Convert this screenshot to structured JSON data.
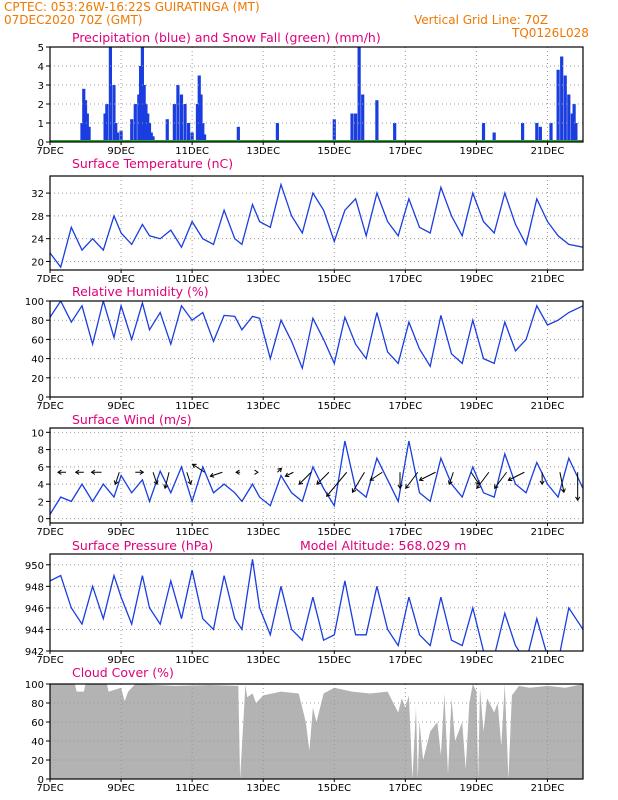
{
  "header": {
    "location_line": "CPTEC:   053:26W-16:22S   GUIRATINGA (MT)",
    "date_line": "07DEC2020 70Z (GMT)",
    "grid_note": "Vertical Grid Line: 70Z",
    "run_id": "TQ0126L028"
  },
  "colors": {
    "header": "#f07800",
    "title": "#e0007a",
    "precip": "#1a3de0",
    "snow": "#2ca02c",
    "line": "#1a3de0",
    "arrow": "#000000",
    "cloud": "#b3b3b3",
    "grid": "#999999"
  },
  "x_axis": {
    "tick_labels": [
      "7DEC",
      "9DEC",
      "11DEC",
      "13DEC",
      "15DEC",
      "17DEC",
      "19DEC",
      "21DEC"
    ],
    "range_days": [
      7,
      22
    ]
  },
  "chart_data": [
    {
      "type": "bar",
      "title": "Precipitation (blue) and Snow Fall (green) (mm/h)",
      "ylim": [
        0,
        5
      ],
      "yticks": [
        0,
        1,
        2,
        3,
        4,
        5
      ],
      "series": [
        {
          "name": "Precipitation",
          "day": [
            7.9,
            7.95,
            8.0,
            8.05,
            8.1,
            8.55,
            8.6,
            8.7,
            8.8,
            8.85,
            8.9,
            9.0,
            9.3,
            9.4,
            9.5,
            9.55,
            9.6,
            9.65,
            9.7,
            9.75,
            9.8,
            9.85,
            9.9,
            10.3,
            10.5,
            10.6,
            10.7,
            10.8,
            10.9,
            11.0,
            11.15,
            11.2,
            11.25,
            11.3,
            11.35,
            12.3,
            13.4,
            15.0,
            15.5,
            15.6,
            15.7,
            15.8,
            16.2,
            16.7,
            19.2,
            19.5,
            20.3,
            20.7,
            20.8,
            21.1,
            21.3,
            21.4,
            21.5,
            21.6,
            21.7,
            21.75,
            21.8
          ],
          "values": [
            1.0,
            2.8,
            2.2,
            1.5,
            0.8,
            1.5,
            2.0,
            5.0,
            3.0,
            1.0,
            0.5,
            0.6,
            1.2,
            2.0,
            2.5,
            4.0,
            5.0,
            3.0,
            2.0,
            1.5,
            1.0,
            0.5,
            0.3,
            1.2,
            2.0,
            3.0,
            2.5,
            2.0,
            1.0,
            0.5,
            2.0,
            3.5,
            2.5,
            1.0,
            0.4,
            0.8,
            1.0,
            1.2,
            1.5,
            1.5,
            5.0,
            2.5,
            2.2,
            1.0,
            1.0,
            0.5,
            1.0,
            1.0,
            0.8,
            1.0,
            3.8,
            4.5,
            3.5,
            2.5,
            1.5,
            2.0,
            1.0
          ]
        },
        {
          "name": "Snow Fall",
          "values": [
            0
          ]
        }
      ]
    },
    {
      "type": "line",
      "title": "Surface Temperature (nC)",
      "ylim": [
        18.5,
        35
      ],
      "yticks": [
        20,
        24,
        28,
        32
      ],
      "x": [
        7.0,
        7.3,
        7.6,
        7.9,
        8.2,
        8.5,
        8.8,
        9.0,
        9.3,
        9.6,
        9.8,
        10.1,
        10.4,
        10.7,
        11.0,
        11.3,
        11.6,
        11.9,
        12.2,
        12.4,
        12.7,
        12.9,
        13.2,
        13.5,
        13.8,
        14.1,
        14.4,
        14.7,
        15.0,
        15.3,
        15.6,
        15.9,
        16.2,
        16.5,
        16.8,
        17.1,
        17.4,
        17.7,
        18.0,
        18.3,
        18.6,
        18.9,
        19.2,
        19.5,
        19.8,
        20.1,
        20.4,
        20.7,
        21.0,
        21.3,
        21.6,
        22.0
      ],
      "values": [
        21.5,
        19.0,
        26.0,
        22.0,
        24.0,
        22.0,
        28.0,
        25.0,
        23.0,
        26.5,
        24.5,
        24.0,
        25.5,
        22.5,
        27.0,
        24.0,
        23.0,
        29.0,
        24.0,
        23.0,
        30.0,
        27.0,
        26.0,
        33.5,
        28.0,
        25.0,
        32.0,
        29.0,
        23.5,
        29.0,
        31.0,
        24.5,
        32.0,
        27.0,
        24.5,
        31.0,
        26.0,
        25.0,
        33.0,
        28.0,
        24.5,
        32.0,
        27.0,
        25.0,
        32.0,
        26.5,
        23.0,
        31.0,
        27.0,
        24.5,
        23.0,
        22.5
      ]
    },
    {
      "type": "line",
      "title": "Relative Humidity (%)",
      "ylim": [
        0,
        100
      ],
      "yticks": [
        0,
        20,
        40,
        60,
        80,
        100
      ],
      "x": [
        7.0,
        7.3,
        7.6,
        7.9,
        8.2,
        8.5,
        8.8,
        9.0,
        9.3,
        9.6,
        9.8,
        10.1,
        10.4,
        10.7,
        11.0,
        11.3,
        11.6,
        11.9,
        12.2,
        12.4,
        12.7,
        12.9,
        13.2,
        13.5,
        13.8,
        14.1,
        14.4,
        14.7,
        15.0,
        15.3,
        15.6,
        15.9,
        16.2,
        16.5,
        16.8,
        17.1,
        17.4,
        17.7,
        18.0,
        18.3,
        18.6,
        18.9,
        19.2,
        19.5,
        19.8,
        20.1,
        20.4,
        20.7,
        21.0,
        21.3,
        21.6,
        22.0
      ],
      "values": [
        83,
        100,
        78,
        95,
        55,
        100,
        62,
        95,
        60,
        98,
        70,
        88,
        55,
        95,
        80,
        88,
        58,
        85,
        84,
        70,
        84,
        82,
        40,
        80,
        58,
        30,
        82,
        60,
        35,
        83,
        55,
        40,
        88,
        47,
        35,
        78,
        50,
        32,
        85,
        45,
        35,
        80,
        40,
        35,
        78,
        48,
        60,
        95,
        75,
        80,
        88,
        95
      ]
    },
    {
      "type": "line",
      "title": "Surface Wind (m/s)",
      "ylim": [
        -0.5,
        10.5
      ],
      "yticks": [
        0,
        2,
        4,
        6,
        8,
        10
      ],
      "x": [
        7.0,
        7.3,
        7.6,
        7.9,
        8.2,
        8.5,
        8.8,
        9.0,
        9.3,
        9.6,
        9.8,
        10.1,
        10.4,
        10.7,
        11.0,
        11.3,
        11.6,
        11.9,
        12.2,
        12.4,
        12.7,
        12.9,
        13.2,
        13.5,
        13.8,
        14.1,
        14.4,
        14.7,
        15.0,
        15.3,
        15.6,
        15.9,
        16.2,
        16.5,
        16.8,
        17.1,
        17.4,
        17.7,
        18.0,
        18.3,
        18.6,
        18.9,
        19.2,
        19.5,
        19.8,
        20.1,
        20.4,
        20.7,
        21.0,
        21.3,
        21.6,
        22.0
      ],
      "values": [
        0.5,
        2.5,
        2.0,
        4.0,
        2.0,
        4.0,
        2.5,
        5.0,
        3.0,
        4.5,
        2.0,
        5.5,
        3.0,
        6.0,
        2.0,
        6.0,
        3.0,
        4.0,
        3.0,
        2.0,
        4.0,
        2.5,
        1.5,
        5.0,
        3.0,
        2.0,
        6.0,
        3.5,
        1.5,
        9.0,
        3.5,
        2.5,
        7.0,
        4.5,
        2.0,
        9.0,
        3.0,
        2.0,
        7.0,
        4.0,
        2.5,
        6.0,
        3.0,
        2.5,
        7.5,
        4.0,
        3.0,
        6.5,
        4.0,
        2.5,
        7.0,
        3.5
      ],
      "arrow_days": [
        7.45,
        7.95,
        8.45,
        8.95,
        9.4,
        9.9,
        10.35,
        10.85,
        11.35,
        11.85,
        12.35,
        12.85,
        13.4,
        13.85,
        14.35,
        14.85,
        15.35,
        15.85,
        16.35,
        16.85,
        17.35,
        17.85,
        18.35,
        18.85,
        19.35,
        19.85,
        20.35,
        20.85,
        21.35,
        21.85
      ],
      "arrow_u": [
        -2,
        -2,
        -2.5,
        -1,
        2,
        1,
        -1,
        1,
        -3,
        -3,
        -1,
        0,
        1,
        -2,
        -3,
        -3,
        -5,
        -3,
        -3,
        0,
        -3,
        -4,
        -1,
        2,
        -3,
        -3,
        -4,
        0,
        1,
        0
      ],
      "arrow_v": [
        0,
        0,
        0,
        -3,
        0,
        -3,
        -4,
        -3,
        2,
        -1,
        0,
        0,
        1,
        -1,
        -3,
        -3,
        -6,
        -5,
        -2,
        -4,
        -4,
        -2,
        -3,
        -3,
        -4,
        -4,
        -2,
        -3,
        -5,
        -7
      ]
    },
    {
      "type": "line",
      "title": "Surface Pressure (hPa)",
      "subtitle": "Model Altitude: 568.029 m",
      "ylim": [
        942,
        951
      ],
      "yticks": [
        942,
        944,
        946,
        948,
        950
      ],
      "x": [
        7.0,
        7.3,
        7.6,
        7.9,
        8.2,
        8.5,
        8.8,
        9.0,
        9.3,
        9.6,
        9.8,
        10.1,
        10.4,
        10.7,
        11.0,
        11.3,
        11.6,
        11.9,
        12.2,
        12.4,
        12.7,
        12.9,
        13.2,
        13.5,
        13.8,
        14.1,
        14.4,
        14.7,
        15.0,
        15.3,
        15.6,
        15.9,
        16.2,
        16.5,
        16.8,
        17.1,
        17.4,
        17.7,
        18.0,
        18.3,
        18.6,
        18.9,
        19.2,
        19.5,
        19.8,
        20.1,
        20.4,
        20.7,
        21.0,
        21.3,
        21.6,
        22.0
      ],
      "values": [
        948.5,
        949.0,
        946.0,
        944.5,
        948.0,
        945.0,
        949.0,
        947.0,
        944.5,
        949.0,
        946.0,
        944.5,
        948.5,
        945.0,
        949.5,
        945.0,
        944.0,
        949.0,
        945.0,
        944.0,
        950.5,
        946.0,
        943.5,
        948.0,
        944.0,
        943.0,
        947.0,
        943.0,
        943.5,
        948.5,
        943.5,
        943.5,
        948.0,
        944.0,
        942.5,
        947.0,
        943.5,
        942.5,
        947.0,
        943.0,
        942.5,
        946.0,
        942.0,
        941.5,
        945.5,
        942.5,
        941.0,
        945.0,
        941.5,
        941.0,
        946.0,
        944.0
      ]
    },
    {
      "type": "area",
      "title": "Cloud Cover (%)",
      "ylim": [
        0,
        100
      ],
      "yticks": [
        0,
        20,
        40,
        60,
        80,
        100
      ],
      "x": [
        7.0,
        7.7,
        7.75,
        7.95,
        8.0,
        8.6,
        8.65,
        9.0,
        9.1,
        9.2,
        9.4,
        10.5,
        11.5,
        12.3,
        12.35,
        12.5,
        12.55,
        12.7,
        12.8,
        13.0,
        13.5,
        14.0,
        14.2,
        14.3,
        14.4,
        14.5,
        14.7,
        15.0,
        15.5,
        16.0,
        16.5,
        16.8,
        16.9,
        17.0,
        17.1,
        17.2,
        17.3,
        17.35,
        17.4,
        17.5,
        17.7,
        17.9,
        18.0,
        18.1,
        18.2,
        18.3,
        18.4,
        18.6,
        18.7,
        18.8,
        18.9,
        19.0,
        19.05,
        19.1,
        19.2,
        19.3,
        19.5,
        19.6,
        19.7,
        19.8,
        19.9,
        20.0,
        20.2,
        20.5,
        21.0,
        21.5,
        22.0
      ],
      "values": [
        100,
        100,
        92,
        92,
        100,
        100,
        92,
        96,
        82,
        92,
        100,
        98,
        99,
        98,
        0,
        99,
        86,
        90,
        80,
        88,
        92,
        90,
        60,
        30,
        75,
        60,
        90,
        96,
        92,
        90,
        92,
        70,
        85,
        75,
        88,
        0,
        75,
        0,
        60,
        20,
        50,
        60,
        25,
        90,
        5,
        85,
        40,
        60,
        10,
        80,
        100,
        92,
        0,
        95,
        50,
        85,
        70,
        80,
        35,
        100,
        0,
        88,
        98,
        96,
        98,
        96,
        100
      ]
    }
  ]
}
